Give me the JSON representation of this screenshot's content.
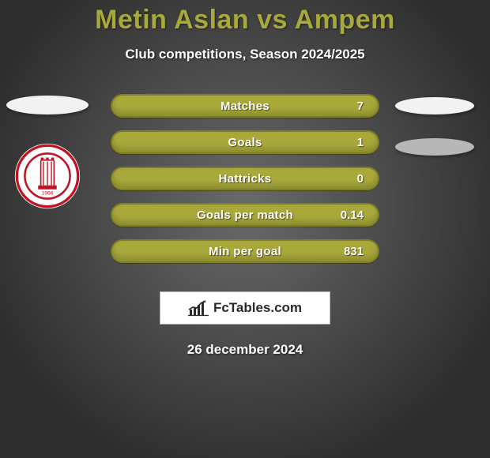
{
  "title": {
    "text": "Metin Aslan vs Ampem",
    "color": "#a9a93b",
    "fontsize": 34
  },
  "subtitle": {
    "text": "Club competitions, Season 2024/2025",
    "color": "#ffffff",
    "fontsize": 17
  },
  "background_gradient": {
    "inner": "#6a6a6a",
    "outer": "#2e2e2e"
  },
  "sides": {
    "left_ellipse_color": "#f2f2f2",
    "right_top_ellipse_color": "#f2f2f2",
    "right_bottom_ellipse_color": "#b7b7b7"
  },
  "club_logo": {
    "ring_outer": "#ffffff",
    "ring_accent": "#c01424",
    "inner_bg": "#ffffff",
    "year": "1966"
  },
  "bars": {
    "fill": "#a9a93b",
    "border": "#7e7e23",
    "text_color": "#ffffff",
    "items": [
      {
        "label": "Matches",
        "value": "7"
      },
      {
        "label": "Goals",
        "value": "1"
      },
      {
        "label": "Hattricks",
        "value": "0"
      },
      {
        "label": "Goals per match",
        "value": "0.14"
      },
      {
        "label": "Min per goal",
        "value": "831"
      }
    ]
  },
  "watermark": {
    "text": "FcTables.com",
    "bg": "#ffffff",
    "border": "#b0b0b0",
    "icon_color": "#2a2a2a"
  },
  "date": {
    "text": "26 december 2024",
    "color": "#ffffff",
    "fontsize": 17
  }
}
